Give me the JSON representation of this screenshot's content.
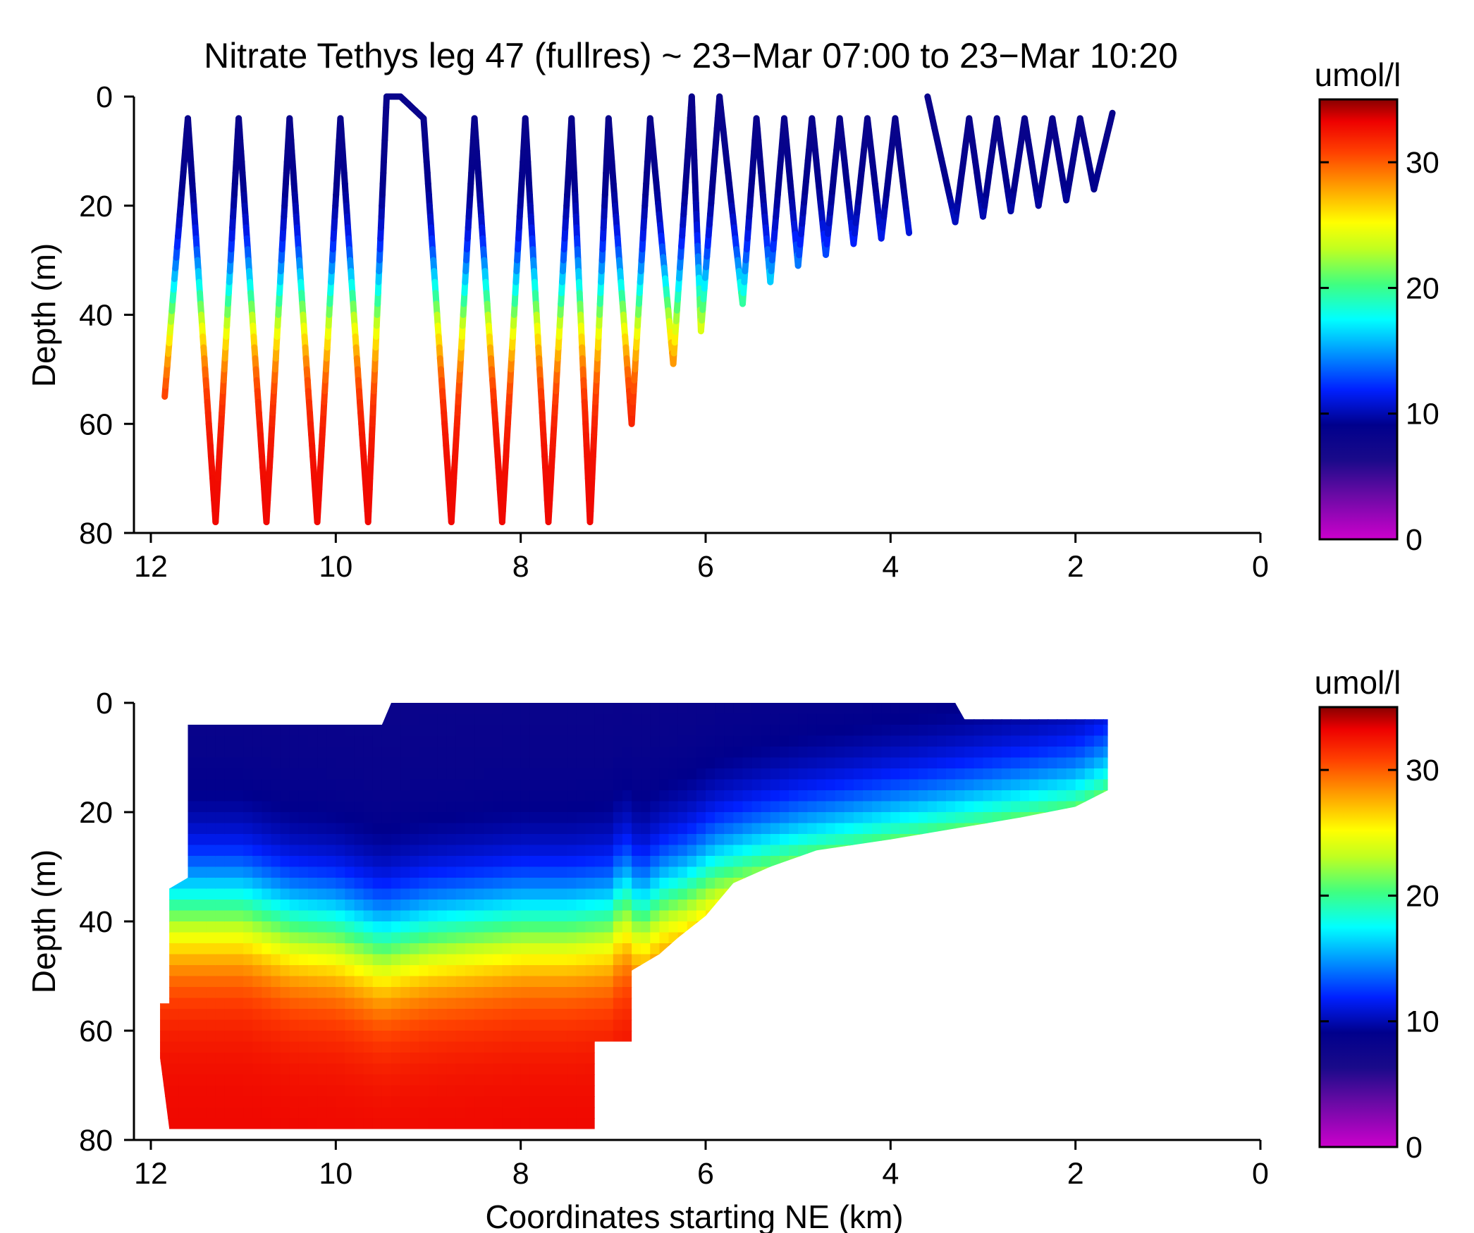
{
  "figure_title": "Nitrate Tethys leg 47 (fullres) ~ 23−Mar 07:00 to 23−Mar 10:20",
  "chart_data": [
    {
      "type": "scatter",
      "title": "Nitrate Tethys leg 47 (fullres) ~ 23−Mar 07:00 to 23−Mar 10:20",
      "xlabel": "",
      "ylabel": "Depth (m)",
      "xlim": [
        12,
        0
      ],
      "ylim": [
        80,
        0
      ],
      "x_ticks": [
        "12",
        "10",
        "8",
        "6",
        "4",
        "2",
        "0"
      ],
      "y_ticks": [
        "0",
        "20",
        "40",
        "60",
        "80"
      ],
      "grid": false,
      "colorbar": {
        "label": "umol/l",
        "range": [
          0,
          35
        ],
        "ticks": [
          "0",
          "10",
          "20",
          "30"
        ]
      },
      "description_values": {
        "profile_turns_km": [
          11.85,
          11.6,
          11.3,
          11.05,
          10.75,
          10.5,
          10.2,
          9.95,
          9.65,
          9.45,
          9.3,
          9.05,
          8.75,
          8.5,
          8.2,
          7.95,
          7.7,
          7.45,
          7.25,
          7.05,
          6.8,
          6.6,
          6.35,
          6.15,
          6.05,
          5.85,
          5.6,
          5.45,
          5.3,
          5.15,
          5.0,
          4.85,
          4.7,
          4.55,
          4.4,
          4.25,
          4.1,
          3.95,
          3.8,
          3.6,
          3.3,
          3.15,
          3.0,
          2.85,
          2.7,
          2.55,
          2.4,
          2.25,
          2.1,
          1.95,
          1.8,
          1.6
        ],
        "profile_turn_depths_m": [
          55,
          4,
          78,
          4,
          78,
          4,
          78,
          4,
          78,
          0,
          0,
          4,
          78,
          4,
          78,
          4,
          78,
          4,
          78,
          4,
          60,
          4,
          49,
          0,
          43,
          0,
          38,
          4,
          34,
          4,
          31,
          4,
          29,
          4,
          27,
          4,
          26,
          4,
          25,
          0,
          23,
          4,
          22,
          4,
          21,
          4,
          20,
          4,
          19,
          4,
          17,
          3
        ],
        "nitracline_depth_m": 38,
        "surface_nitrate_umol_l": 8,
        "deep_nitrate_umol_l": 33
      }
    },
    {
      "type": "heatmap",
      "title": "",
      "xlabel": "Coordinates starting NE (km)",
      "ylabel": "Depth (m)",
      "xlim": [
        12,
        0
      ],
      "ylim": [
        80,
        0
      ],
      "x_ticks": [
        "12",
        "10",
        "8",
        "6",
        "4",
        "2",
        "0"
      ],
      "y_ticks": [
        "0",
        "20",
        "40",
        "60",
        "80"
      ],
      "grid": false,
      "colorbar": {
        "label": "umol/l",
        "range": [
          0,
          35
        ],
        "ticks": [
          "0",
          "10",
          "20",
          "30"
        ]
      },
      "coverage_bottom_depth_m": [
        [
          11.8,
          78
        ],
        [
          11.6,
          78
        ],
        [
          7.2,
          78
        ],
        [
          7.2,
          62
        ],
        [
          6.8,
          62
        ],
        [
          6.8,
          49
        ],
        [
          6.5,
          46
        ],
        [
          6.3,
          43
        ],
        [
          6.0,
          39
        ],
        [
          5.7,
          33
        ],
        [
          5.3,
          30
        ],
        [
          4.8,
          27
        ],
        [
          4.0,
          25
        ],
        [
          3.3,
          23
        ],
        [
          2.6,
          21
        ],
        [
          2.0,
          19
        ],
        [
          1.65,
          16
        ],
        [
          1.65,
          3
        ]
      ],
      "coverage_top_depth_m": [
        [
          11.6,
          4
        ],
        [
          9.5,
          4
        ],
        [
          9.4,
          0
        ],
        [
          3.3,
          0
        ],
        [
          3.2,
          3
        ],
        [
          1.65,
          3
        ]
      ],
      "nitracline_depth_m": [
        [
          11.6,
          38
        ],
        [
          11.0,
          38
        ],
        [
          10.5,
          41
        ],
        [
          10.0,
          42
        ],
        [
          9.5,
          45
        ],
        [
          9.0,
          43
        ],
        [
          8.5,
          42
        ],
        [
          8.0,
          41
        ],
        [
          7.5,
          41
        ],
        [
          7.0,
          40
        ],
        [
          6.9,
          36
        ],
        [
          6.7,
          40
        ],
        [
          6.5,
          37
        ],
        [
          6.2,
          35
        ],
        [
          5.9,
          32
        ],
        [
          5.5,
          30
        ],
        [
          5.0,
          28
        ],
        [
          4.0,
          25
        ],
        [
          3.3,
          23
        ],
        [
          2.0,
          19
        ],
        [
          1.65,
          16
        ]
      ],
      "surface_nitrate_umol_l": 8,
      "deep_nitrate_umol_l": 33
    }
  ]
}
